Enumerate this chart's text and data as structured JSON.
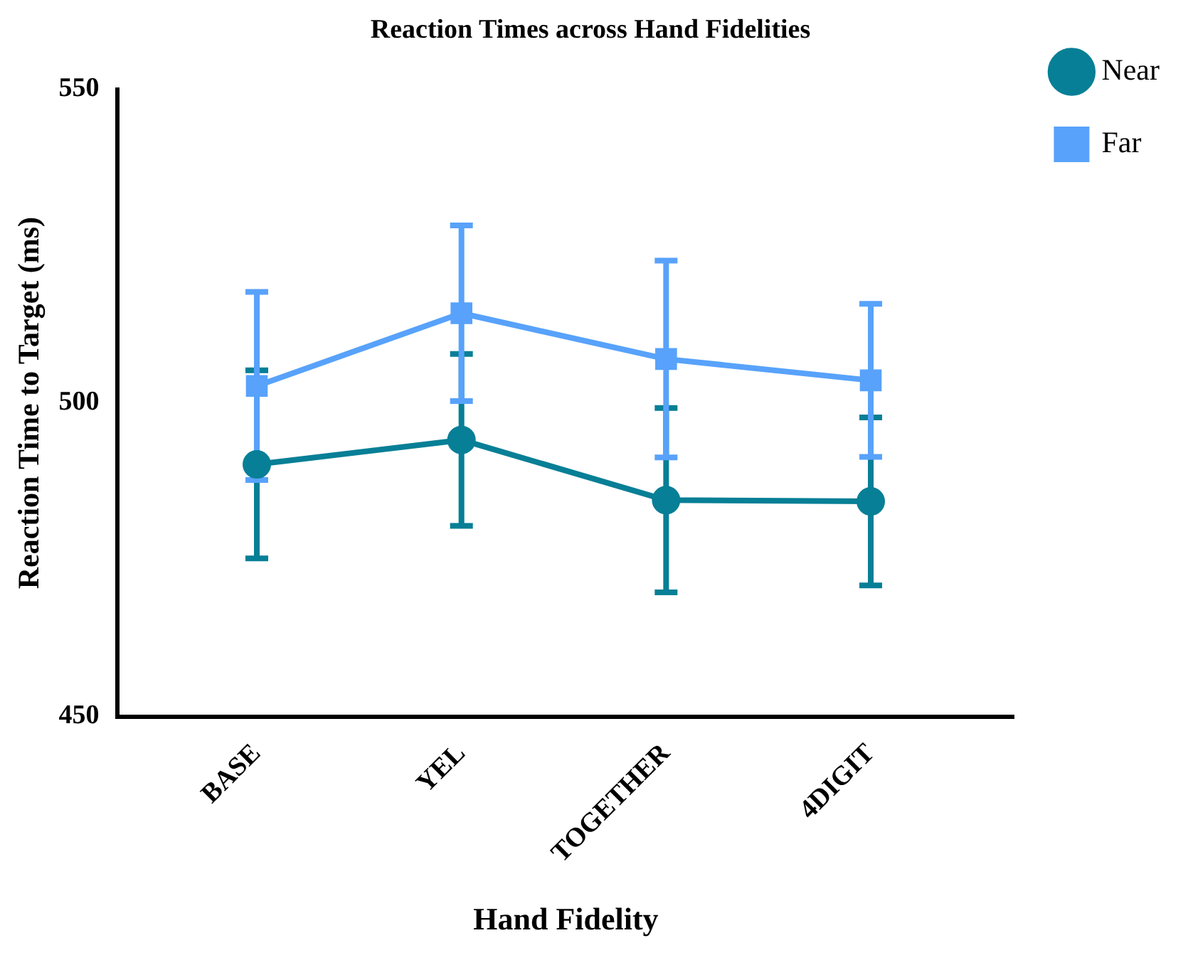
{
  "chart_data": {
    "type": "line",
    "title": "Reaction Times across Hand Fidelities",
    "xlabel": "Hand Fidelity",
    "ylabel": "Reaction Time to Target (ms)",
    "categories": [
      "BASE",
      "YEL",
      "TOGETHER",
      "4DIGIT"
    ],
    "series": [
      {
        "name": "Near",
        "color": "#077f96",
        "values": [
          490.2,
          494.1,
          484.5,
          484.3
        ],
        "errors": [
          15,
          13.7,
          14.7,
          13.4
        ],
        "marker": "circle"
      },
      {
        "name": "Far",
        "color": "#58a2fb",
        "values": [
          502.7,
          514.3,
          507.0,
          503.6
        ],
        "errors": [
          15,
          14,
          15.7,
          12.2
        ],
        "marker": "square"
      }
    ],
    "ylim": [
      450,
      550
    ],
    "yticks": [
      450,
      500,
      550
    ],
    "grid": false,
    "legend": "top right",
    "line_style": "solid"
  }
}
